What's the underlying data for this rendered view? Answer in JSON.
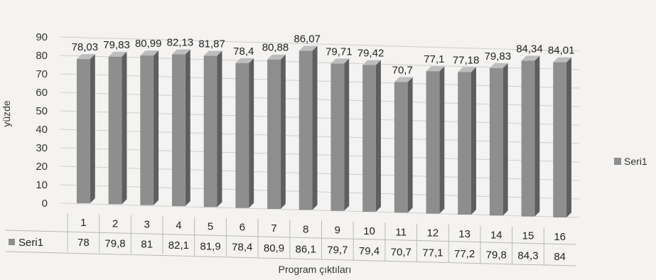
{
  "chart_data": {
    "type": "bar",
    "categories": [
      "1",
      "2",
      "3",
      "4",
      "5",
      "6",
      "7",
      "8",
      "9",
      "10",
      "11",
      "12",
      "13",
      "14",
      "15",
      "16"
    ],
    "series": [
      {
        "name": "Seri1",
        "values": [
          78.03,
          79.83,
          80.99,
          82.13,
          81.87,
          78.4,
          80.88,
          86.07,
          79.71,
          79.42,
          70.7,
          77.1,
          77.18,
          79.83,
          84.34,
          84.01
        ],
        "data_labels": [
          "78,03",
          "79,83",
          "80,99",
          "82,13",
          "81,87",
          "78,4",
          "80,88",
          "86,07",
          "79,71",
          "79,42",
          "70,7",
          "77,1",
          "77,18",
          "79,83",
          "84,34",
          "84,01"
        ],
        "table_values": [
          "78",
          "79,8",
          "81",
          "82,1",
          "81,9",
          "78,4",
          "80,9",
          "86,1",
          "79,7",
          "79,4",
          "70,7",
          "77,1",
          "77,2",
          "79,8",
          "84,3",
          "84"
        ],
        "color": "#8e8e8e"
      }
    ],
    "xlabel": "Program çıktıları",
    "ylabel": "yüzde",
    "ylim": [
      0,
      90
    ],
    "yticks": [
      "0",
      "10",
      "20",
      "30",
      "40",
      "50",
      "60",
      "70",
      "80",
      "90"
    ],
    "grid": true,
    "legend": "right",
    "style": "3d"
  }
}
